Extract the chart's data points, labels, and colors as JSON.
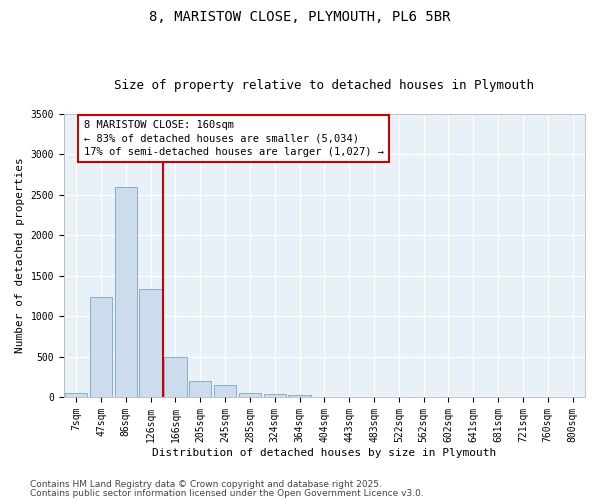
{
  "title_line1": "8, MARISTOW CLOSE, PLYMOUTH, PL6 5BR",
  "title_line2": "Size of property relative to detached houses in Plymouth",
  "xlabel": "Distribution of detached houses by size in Plymouth",
  "ylabel": "Number of detached properties",
  "categories": [
    "7sqm",
    "47sqm",
    "86sqm",
    "126sqm",
    "166sqm",
    "205sqm",
    "245sqm",
    "285sqm",
    "324sqm",
    "364sqm",
    "404sqm",
    "443sqm",
    "483sqm",
    "522sqm",
    "562sqm",
    "602sqm",
    "641sqm",
    "681sqm",
    "721sqm",
    "760sqm",
    "800sqm"
  ],
  "values": [
    50,
    1240,
    2600,
    1340,
    500,
    200,
    150,
    50,
    40,
    30,
    0,
    0,
    0,
    0,
    0,
    0,
    0,
    0,
    0,
    0,
    0
  ],
  "bar_color": "#ccdcec",
  "bar_edge_color": "#6699bb",
  "vline_color": "#cc0000",
  "annotation_text": "8 MARISTOW CLOSE: 160sqm\n← 83% of detached houses are smaller (5,034)\n17% of semi-detached houses are larger (1,027) →",
  "annotation_box_color": "#cc0000",
  "ylim": [
    0,
    3500
  ],
  "yticks": [
    0,
    500,
    1000,
    1500,
    2000,
    2500,
    3000,
    3500
  ],
  "background_color": "#e8f0f8",
  "grid_color": "#ffffff",
  "footer_line1": "Contains HM Land Registry data © Crown copyright and database right 2025.",
  "footer_line2": "Contains public sector information licensed under the Open Government Licence v3.0.",
  "title_fontsize": 10,
  "subtitle_fontsize": 9,
  "axis_label_fontsize": 8,
  "tick_fontsize": 7,
  "annotation_fontsize": 7.5,
  "footer_fontsize": 6.5
}
